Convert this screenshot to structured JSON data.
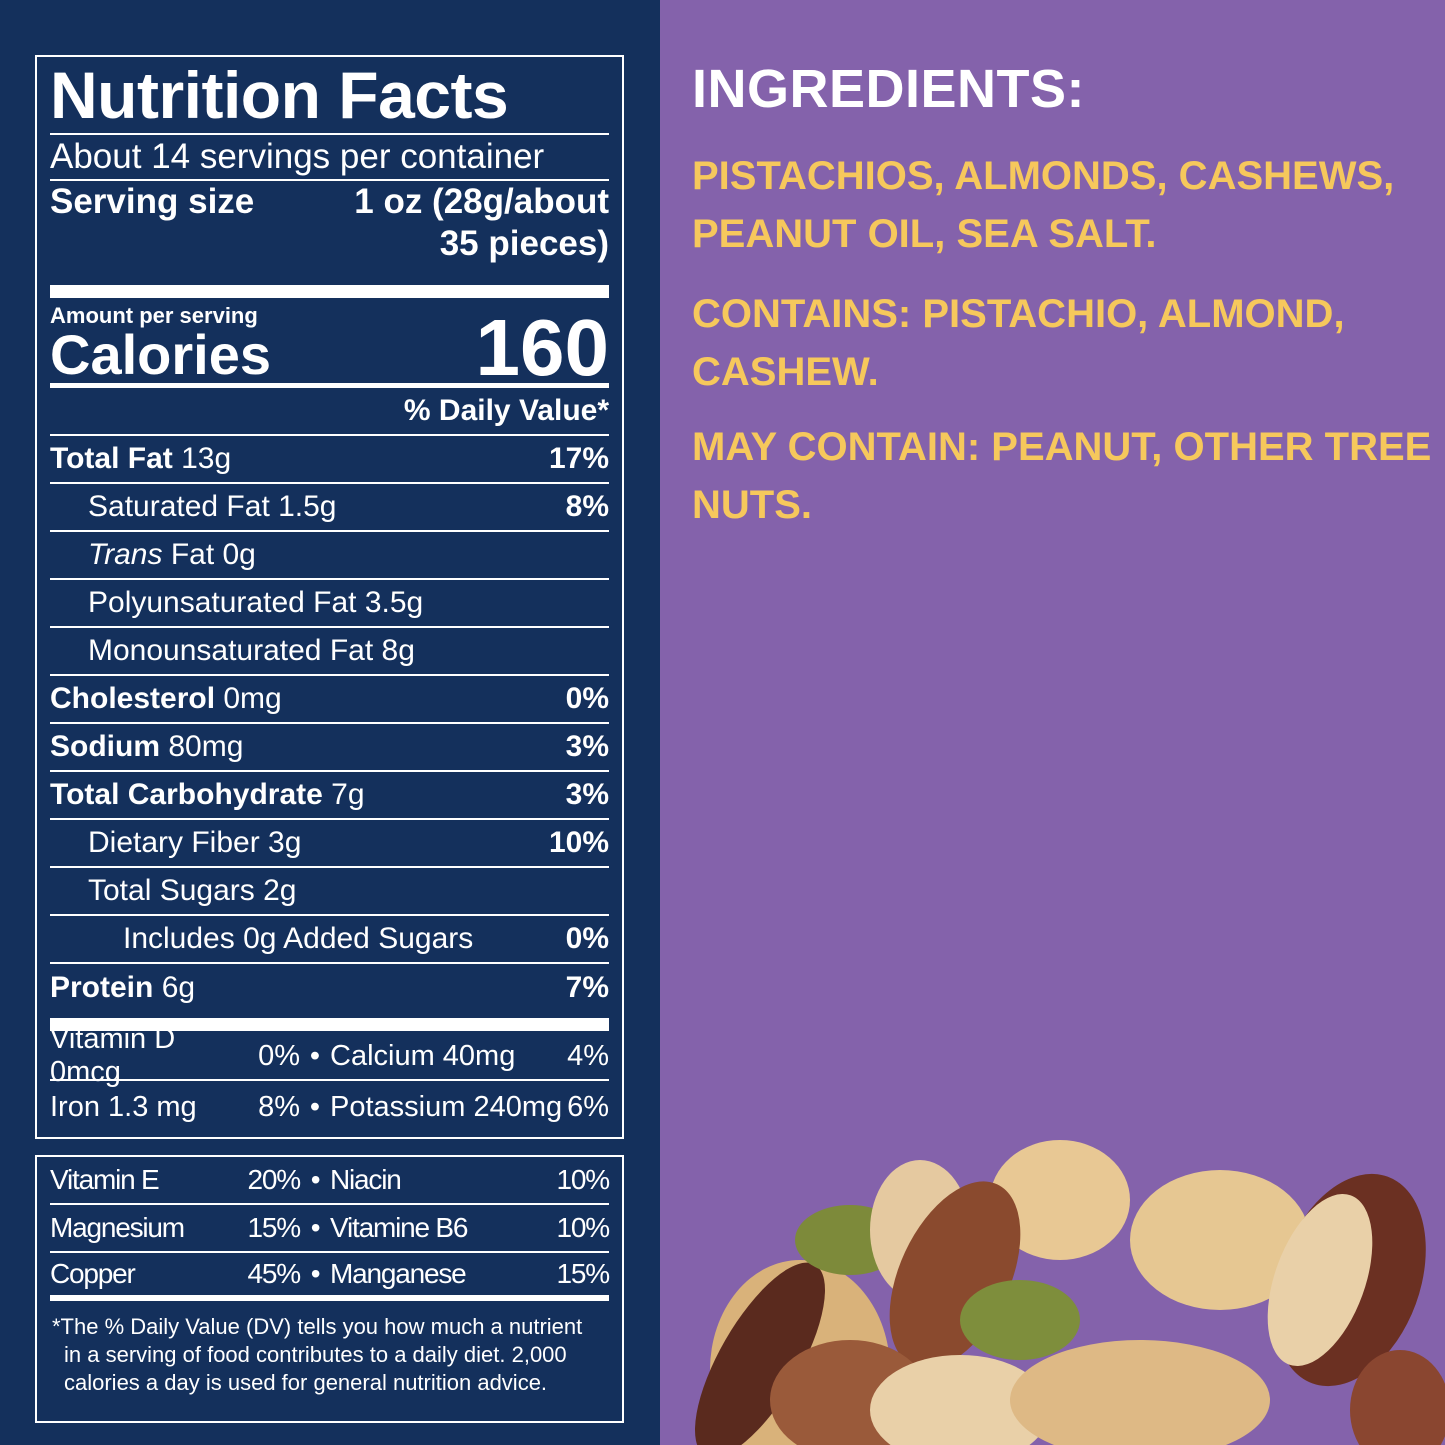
{
  "nutrition": {
    "title": "Nutrition Facts",
    "servings": "About 14 servings per container",
    "serving_size_label": "Serving size",
    "serving_size_value": "1 oz (28g/about",
    "serving_size_value2": "35 pieces)",
    "amount_per_serving": "Amount per serving",
    "calories_label": "Calories",
    "calories_value": "160",
    "daily_value_header": "% Daily Value*",
    "rows": [
      {
        "name": "Total Fat",
        "amount": "13g",
        "dv": "17%"
      },
      {
        "name": "Saturated Fat 1.5g",
        "amount": "",
        "dv": "8%"
      },
      {
        "name": "Trans",
        "amount": "Fat 0g",
        "dv": ""
      },
      {
        "name": "Polyunsaturated Fat 3.5g",
        "amount": "",
        "dv": ""
      },
      {
        "name": "Monounsaturated Fat 8g",
        "amount": "",
        "dv": ""
      },
      {
        "name": "Cholesterol",
        "amount": "0mg",
        "dv": "0%"
      },
      {
        "name": "Sodium",
        "amount": "80mg",
        "dv": "3%"
      },
      {
        "name": "Total Carbohydrate",
        "amount": "7g",
        "dv": "3%"
      },
      {
        "name": "Dietary Fiber 3g",
        "amount": "",
        "dv": "10%"
      },
      {
        "name": "Total Sugars 2g",
        "amount": "",
        "dv": ""
      },
      {
        "name": "Includes 0g Added Sugars",
        "amount": "",
        "dv": "0%"
      },
      {
        "name": "Protein",
        "amount": "6g",
        "dv": "7%"
      }
    ],
    "vitamins": [
      {
        "a": "Vitamin D 0mcg",
        "ap": "0%",
        "b": "Calcium 40mg",
        "bp": "4%"
      },
      {
        "a": "Iron 1.3 mg",
        "ap": "8%",
        "b": "Potassium 240mg",
        "bp": "6%"
      }
    ],
    "minerals": [
      {
        "a": "Vitamin E",
        "ap": "20%",
        "b": "Niacin",
        "bp": "10%"
      },
      {
        "a": "Magnesium",
        "ap": "15%",
        "b": "Vitamine B6",
        "bp": "10%"
      },
      {
        "a": "Copper",
        "ap": "45%",
        "b": "Manganese",
        "bp": "15%"
      }
    ],
    "bullet": "•",
    "footnote1": "*The % Daily Value (DV) tells you how much a nutrient",
    "footnote2": "in a serving of food contributes to a daily diet. 2,000",
    "footnote3": "calories a day is used for general nutrition advice."
  },
  "ingredients": {
    "title": "INGREDIENTS:",
    "list": "PISTACHIOS, ALMONDS, CASHEWS, PEANUT OIL, SEA SALT.",
    "contains": "CONTAINS: PISTACHIO, ALMOND, CASHEW.",
    "may_contain": "MAY CONTAIN: PEANUT, OTHER TREE NUTS."
  },
  "colors": {
    "navy": "#14305c",
    "purple": "#8462ab",
    "yellow": "#f6c85c"
  }
}
